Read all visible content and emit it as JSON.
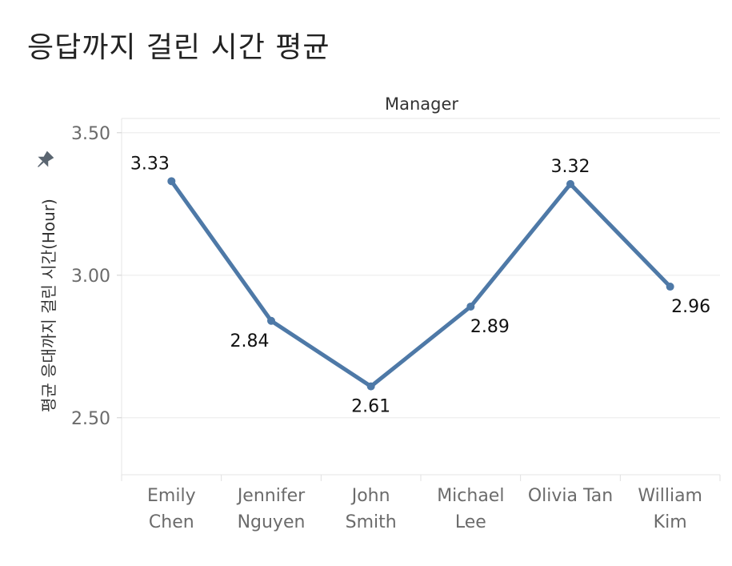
{
  "title": "응답까지 걸린 시간 평균",
  "chart_data": {
    "type": "line",
    "title": "응답까지 걸린 시간 평균",
    "column_header": "Manager",
    "xlabel": "",
    "ylabel": "평균 응대까지 걸린 시간(Hour)",
    "ylim": [
      2.3,
      3.55
    ],
    "yticks": [
      "3.50",
      "3.00",
      "2.50"
    ],
    "categories": [
      [
        "Emily",
        "Chen"
      ],
      [
        "Jennifer",
        "Nguyen"
      ],
      [
        "John",
        "Smith"
      ],
      [
        "Michael",
        "Lee"
      ],
      [
        "Olivia Tan"
      ],
      [
        "William",
        "Kim"
      ]
    ],
    "values": [
      3.33,
      2.84,
      2.61,
      2.89,
      3.32,
      2.96
    ],
    "labels": [
      "3.33",
      "2.84",
      "2.61",
      "2.89",
      "3.32",
      "2.96"
    ],
    "label_positions": [
      "above",
      "below",
      "below",
      "below",
      "above",
      "below"
    ],
    "series_color": "#4e79a7",
    "grid": true,
    "pin_icon": "pin-icon"
  }
}
